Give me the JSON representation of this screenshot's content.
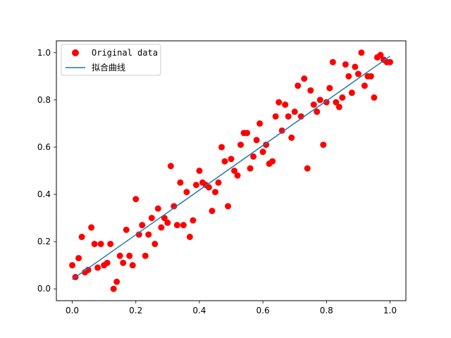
{
  "chart_data": {
    "type": "scatter",
    "xlim": [
      -0.05,
      1.05
    ],
    "ylim": [
      -0.05,
      1.05
    ],
    "grid": false,
    "legend_position": "top-left",
    "xticks": [
      "0.0",
      "0.2",
      "0.4",
      "0.6",
      "0.8",
      "1.0"
    ],
    "yticks": [
      "0.0",
      "0.2",
      "0.4",
      "0.6",
      "0.8",
      "1.0"
    ],
    "series": [
      {
        "name": "Original data",
        "kind": "scatter",
        "color": "#ff0000",
        "x": [
          0.0,
          0.01,
          0.02,
          0.03,
          0.04,
          0.05,
          0.06,
          0.07,
          0.08,
          0.09,
          0.1,
          0.11,
          0.12,
          0.13,
          0.14,
          0.15,
          0.16,
          0.17,
          0.18,
          0.19,
          0.2,
          0.21,
          0.22,
          0.23,
          0.24,
          0.25,
          0.26,
          0.27,
          0.28,
          0.29,
          0.3,
          0.31,
          0.32,
          0.33,
          0.34,
          0.35,
          0.36,
          0.37,
          0.38,
          0.39,
          0.4,
          0.41,
          0.42,
          0.43,
          0.44,
          0.45,
          0.46,
          0.47,
          0.48,
          0.49,
          0.5,
          0.51,
          0.52,
          0.53,
          0.54,
          0.55,
          0.56,
          0.57,
          0.58,
          0.59,
          0.6,
          0.61,
          0.62,
          0.63,
          0.64,
          0.65,
          0.66,
          0.67,
          0.68,
          0.69,
          0.7,
          0.71,
          0.72,
          0.73,
          0.74,
          0.75,
          0.76,
          0.77,
          0.78,
          0.79,
          0.8,
          0.81,
          0.82,
          0.83,
          0.84,
          0.85,
          0.86,
          0.87,
          0.88,
          0.89,
          0.9,
          0.91,
          0.92,
          0.93,
          0.94,
          0.95,
          0.96,
          0.97,
          0.98,
          0.99,
          1.0
        ],
        "y": [
          0.1,
          0.05,
          0.13,
          0.22,
          0.07,
          0.08,
          0.26,
          0.19,
          0.09,
          0.19,
          0.1,
          0.11,
          0.19,
          0.0,
          0.03,
          0.14,
          0.11,
          0.25,
          0.14,
          0.1,
          0.38,
          0.23,
          0.27,
          0.14,
          0.23,
          0.3,
          0.19,
          0.34,
          0.26,
          0.3,
          0.28,
          0.52,
          0.35,
          0.27,
          0.45,
          0.27,
          0.41,
          0.22,
          0.29,
          0.44,
          0.5,
          0.45,
          0.44,
          0.43,
          0.33,
          0.41,
          0.45,
          0.6,
          0.54,
          0.35,
          0.55,
          0.5,
          0.48,
          0.61,
          0.66,
          0.66,
          0.51,
          0.56,
          0.63,
          0.7,
          0.58,
          0.61,
          0.53,
          0.54,
          0.73,
          0.79,
          0.67,
          0.78,
          0.73,
          0.64,
          0.75,
          0.86,
          0.73,
          0.89,
          0.51,
          0.84,
          0.78,
          0.75,
          0.8,
          0.61,
          0.79,
          0.85,
          0.96,
          0.79,
          0.77,
          0.81,
          0.95,
          0.9,
          0.83,
          0.94,
          0.91,
          1.0,
          0.86,
          0.9,
          0.9,
          0.81,
          0.98,
          0.99,
          0.97,
          0.96,
          0.96
        ]
      },
      {
        "name": "拟合曲线",
        "kind": "line",
        "color": "#1f77b4",
        "x": [
          0.0,
          1.0
        ],
        "y": [
          0.04,
          0.985
        ]
      }
    ]
  }
}
